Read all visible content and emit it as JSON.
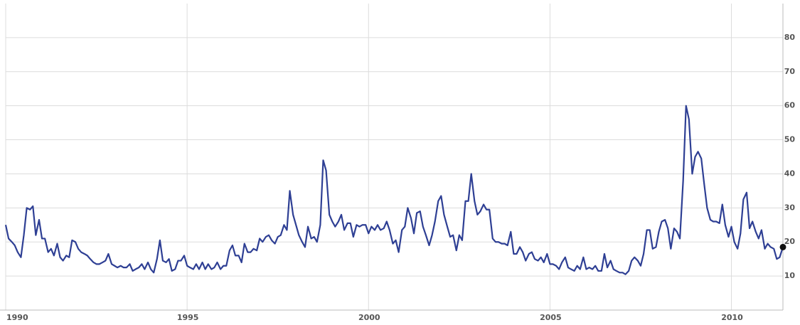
{
  "chart_data": {
    "type": "line",
    "x": [
      1990.0,
      1990.08,
      1990.17,
      1990.25,
      1990.33,
      1990.42,
      1990.5,
      1990.58,
      1990.67,
      1990.75,
      1990.83,
      1990.92,
      1991.0,
      1991.08,
      1991.17,
      1991.25,
      1991.33,
      1991.42,
      1991.5,
      1991.58,
      1991.67,
      1991.75,
      1991.83,
      1991.92,
      1992.0,
      1992.08,
      1992.17,
      1992.25,
      1992.33,
      1992.42,
      1992.5,
      1992.58,
      1992.67,
      1992.75,
      1992.83,
      1992.92,
      1993.0,
      1993.08,
      1993.17,
      1993.25,
      1993.33,
      1993.42,
      1993.5,
      1993.58,
      1993.67,
      1993.75,
      1993.83,
      1993.92,
      1994.0,
      1994.08,
      1994.17,
      1994.25,
      1994.33,
      1994.42,
      1994.5,
      1994.58,
      1994.67,
      1994.75,
      1994.83,
      1994.92,
      1995.0,
      1995.08,
      1995.17,
      1995.25,
      1995.33,
      1995.42,
      1995.5,
      1995.58,
      1995.67,
      1995.75,
      1995.83,
      1995.92,
      1996.0,
      1996.08,
      1996.17,
      1996.25,
      1996.33,
      1996.42,
      1996.5,
      1996.58,
      1996.67,
      1996.75,
      1996.83,
      1996.92,
      1997.0,
      1997.08,
      1997.17,
      1997.25,
      1997.33,
      1997.42,
      1997.5,
      1997.58,
      1997.67,
      1997.75,
      1997.83,
      1997.92,
      1998.0,
      1998.08,
      1998.17,
      1998.25,
      1998.33,
      1998.42,
      1998.5,
      1998.58,
      1998.67,
      1998.75,
      1998.83,
      1998.92,
      1999.0,
      1999.08,
      1999.17,
      1999.25,
      1999.33,
      1999.42,
      1999.5,
      1999.58,
      1999.67,
      1999.75,
      1999.83,
      1999.92,
      2000.0,
      2000.08,
      2000.17,
      2000.25,
      2000.33,
      2000.42,
      2000.5,
      2000.58,
      2000.67,
      2000.75,
      2000.83,
      2000.92,
      2001.0,
      2001.08,
      2001.17,
      2001.25,
      2001.33,
      2001.42,
      2001.5,
      2001.58,
      2001.67,
      2001.75,
      2001.83,
      2001.92,
      2002.0,
      2002.08,
      2002.17,
      2002.25,
      2002.33,
      2002.42,
      2002.5,
      2002.58,
      2002.67,
      2002.75,
      2002.83,
      2002.92,
      2003.0,
      2003.08,
      2003.17,
      2003.25,
      2003.33,
      2003.42,
      2003.5,
      2003.58,
      2003.67,
      2003.75,
      2003.83,
      2003.92,
      2004.0,
      2004.08,
      2004.17,
      2004.25,
      2004.33,
      2004.42,
      2004.5,
      2004.58,
      2004.67,
      2004.75,
      2004.83,
      2004.92,
      2005.0,
      2005.08,
      2005.17,
      2005.25,
      2005.33,
      2005.42,
      2005.5,
      2005.58,
      2005.67,
      2005.75,
      2005.83,
      2005.92,
      2006.0,
      2006.08,
      2006.17,
      2006.25,
      2006.33,
      2006.42,
      2006.5,
      2006.58,
      2006.67,
      2006.75,
      2006.83,
      2006.92,
      2007.0,
      2007.08,
      2007.17,
      2007.25,
      2007.33,
      2007.42,
      2007.5,
      2007.58,
      2007.67,
      2007.75,
      2007.83,
      2007.92,
      2008.0,
      2008.08,
      2008.17,
      2008.25,
      2008.33,
      2008.42,
      2008.5,
      2008.58,
      2008.67,
      2008.75,
      2008.83,
      2008.92,
      2009.0,
      2009.08,
      2009.17,
      2009.25,
      2009.33,
      2009.42,
      2009.5,
      2009.58,
      2009.67,
      2009.75,
      2009.83,
      2009.92,
      2010.0,
      2010.08,
      2010.17,
      2010.25,
      2010.33,
      2010.42,
      2010.5,
      2010.58,
      2010.67,
      2010.75,
      2010.83,
      2010.92,
      2011.0,
      2011.08,
      2011.17,
      2011.25,
      2011.33,
      2011.42
    ],
    "series": [
      {
        "color": "#2e3f94",
        "values": [
          25,
          21,
          20,
          19,
          17,
          15.5,
          22,
          30,
          29.5,
          30.5,
          22,
          26.5,
          21,
          21,
          17,
          18,
          16,
          19.5,
          15.5,
          14.5,
          16,
          15.5,
          20.5,
          20,
          18,
          17,
          16.5,
          16,
          15,
          14,
          13.5,
          13.5,
          14,
          14.5,
          16.5,
          13.5,
          13,
          12.5,
          13,
          12.5,
          12.5,
          13.5,
          11.5,
          12,
          12.5,
          13.5,
          12,
          14,
          12,
          11,
          15,
          20.5,
          14.5,
          14,
          15,
          11.5,
          12,
          14.5,
          14.5,
          16,
          13,
          12.5,
          12,
          13.5,
          12,
          14,
          12,
          13.5,
          12,
          12.5,
          14,
          12,
          13,
          13,
          17.5,
          19,
          16,
          16,
          14,
          19.5,
          17,
          17,
          18,
          17.5,
          21,
          20,
          21.5,
          22,
          20.5,
          19.5,
          21.5,
          22,
          25,
          23.5,
          35,
          28,
          25,
          22,
          20,
          18.5,
          24.5,
          21,
          21.5,
          20,
          25,
          44,
          41,
          28,
          26,
          24.5,
          26,
          28,
          23.5,
          25.5,
          25.5,
          21.5,
          25,
          24.5,
          25,
          25,
          22.5,
          24.5,
          23.5,
          25,
          23.5,
          24,
          26,
          23.5,
          19.5,
          20.5,
          17,
          23.5,
          24.5,
          30,
          27,
          22.5,
          28.5,
          29,
          24.5,
          22,
          19,
          22,
          26,
          32,
          33.5,
          28,
          24.5,
          21.5,
          22,
          17.5,
          22,
          20.5,
          32,
          32,
          40,
          32,
          28,
          29,
          31,
          29.5,
          29.5,
          21,
          20,
          20,
          19.5,
          19.5,
          19,
          23,
          16.5,
          16.5,
          18.5,
          17,
          14.5,
          16.5,
          17,
          15,
          14.5,
          15.5,
          14,
          16.5,
          13.5,
          13.5,
          13,
          12,
          14,
          15.5,
          12.5,
          12,
          11.5,
          13,
          12,
          15.5,
          12,
          12.5,
          12,
          13,
          11.5,
          11.5,
          16.5,
          12.5,
          14.5,
          12,
          11.5,
          11,
          11,
          10.5,
          11.5,
          14.5,
          15.5,
          14.5,
          13,
          16.5,
          23.5,
          23.5,
          18,
          18.5,
          23,
          26,
          26.5,
          24,
          18,
          24,
          23,
          21,
          38,
          60,
          56,
          40,
          45,
          46.5,
          44.5,
          37,
          30,
          26.5,
          26,
          26,
          25.5,
          31,
          25,
          21.5,
          24.5,
          20,
          18,
          22.5,
          32.5,
          34.5,
          24,
          26,
          23,
          21,
          23.5,
          18,
          19.5,
          18.5,
          18,
          15,
          15.5,
          18.5
        ]
      }
    ],
    "xlim": [
      1990,
      2011.42
    ],
    "xticks": [
      1990,
      1995,
      2000,
      2005,
      2010
    ],
    "ylim": [
      0,
      90
    ],
    "yticks": [
      10,
      20,
      30,
      40,
      50,
      60,
      70,
      80
    ],
    "grid": true
  }
}
